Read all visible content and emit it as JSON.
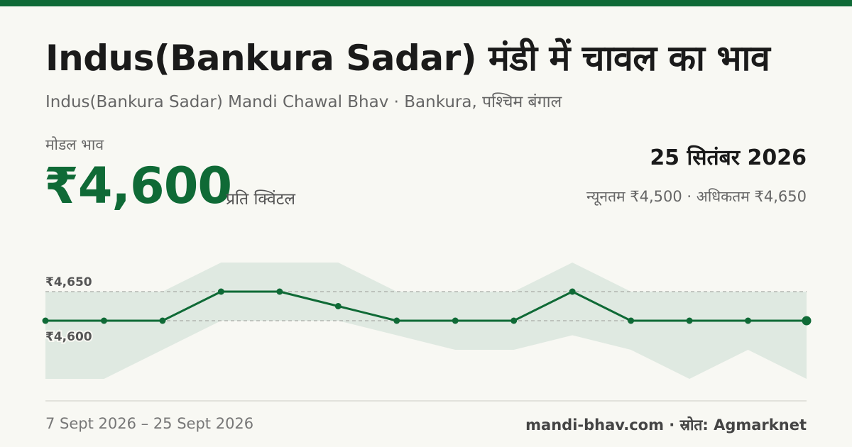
{
  "header": {
    "title": "Indus(Bankura Sadar) मंडी में चावल का भाव",
    "subtitle": "Indus(Bankura Sadar) Mandi Chawal Bhav · Bankura, पश्चिम बंगाल"
  },
  "price": {
    "label": "मोडल भाव",
    "value": "₹4,600",
    "unit": "प्रति क्विंटल",
    "date": "25 सितंबर 2026",
    "range": "न्यूनतम ₹4,500 · अधिकतम ₹4,650"
  },
  "footer": {
    "period": "7 Sept 2026 – 25 Sept 2026",
    "source": "mandi-bhav.com · स्रोत: Agmarknet"
  },
  "colors": {
    "accent": "#0f6a36",
    "band": "#dfe9e1",
    "background": "#f8f8f3"
  },
  "chart_data": {
    "type": "line",
    "title": "",
    "xlabel": "",
    "ylabel": "",
    "ylim": [
      4500,
      4700
    ],
    "grid": false,
    "reference_lines": [
      {
        "value": 4650,
        "label": "₹4,650"
      },
      {
        "value": 4600,
        "label": "₹4,600"
      }
    ],
    "series": [
      {
        "values": [
          4600,
          4600,
          4600,
          4650,
          4650,
          4625,
          4600,
          4600,
          4600,
          4650,
          4600,
          4600,
          4600,
          4600
        ]
      }
    ],
    "band": {
      "min": [
        4500,
        4500,
        4550,
        4600,
        4600,
        4600,
        4575,
        4550,
        4550,
        4575,
        4550,
        4500,
        4550,
        4500
      ],
      "max": [
        4650,
        4650,
        4650,
        4700,
        4700,
        4700,
        4650,
        4650,
        4650,
        4700,
        4650,
        4650,
        4650,
        4650
      ]
    }
  }
}
